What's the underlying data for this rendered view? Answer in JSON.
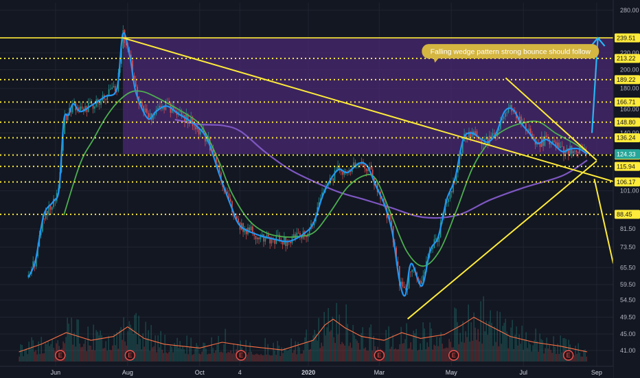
{
  "chart_data": {
    "type": "candlestick",
    "y_scale": "log",
    "ylim": [
      37.5,
      292
    ],
    "xlim": [
      "2019-04-15",
      "2020-09-15"
    ],
    "y_ticks": [
      280.0,
      220.0,
      200.0,
      180.0,
      160.0,
      140.0,
      124.33,
      101.0,
      81.5,
      73.5,
      65.5,
      59.5,
      54.5,
      49.5,
      45.0,
      41.0
    ],
    "x_ticks": [
      {
        "date": "2019-06-01",
        "label": "Jun",
        "bold": false
      },
      {
        "date": "2019-08-01",
        "label": "Aug",
        "bold": false
      },
      {
        "date": "2019-10-01",
        "label": "Oct",
        "bold": false
      },
      {
        "date": "2019-11-04",
        "label": "4",
        "bold": false
      },
      {
        "date": "2020-01-01",
        "label": "2020",
        "bold": true
      },
      {
        "date": "2020-03-01",
        "label": "Mar",
        "bold": false
      },
      {
        "date": "2020-05-01",
        "label": "May",
        "bold": false
      },
      {
        "date": "2020-07-01",
        "label": "Jul",
        "bold": false
      },
      {
        "date": "2020-09-01",
        "label": "Sep",
        "bold": false
      }
    ],
    "horizontal_levels": [
      {
        "value": 239.51,
        "label": "239.51",
        "style": "solid"
      },
      {
        "value": 213.22,
        "label": "213.22",
        "style": "dotted"
      },
      {
        "value": 189.22,
        "label": "189.22",
        "style": "dotted"
      },
      {
        "value": 166.71,
        "label": "166.71",
        "style": "dotted"
      },
      {
        "value": 148.8,
        "label": "148.80",
        "style": "dotted"
      },
      {
        "value": 136.24,
        "label": "136.24",
        "style": "dotted"
      },
      {
        "value": 123.57,
        "label": "123.57",
        "style": "dotted"
      },
      {
        "value": 115.94,
        "label": "115.94",
        "style": "dotted"
      },
      {
        "value": 106.17,
        "label": "106.17",
        "style": "dotted"
      },
      {
        "value": 88.45,
        "label": "88.45",
        "style": "dotted"
      }
    ],
    "last_price": {
      "value": 124.33,
      "label": "124.33",
      "color": "#26a69a"
    },
    "price_series": {
      "name": "",
      "color": "#2196f3",
      "points": [
        [
          "2019-05-09",
          62
        ],
        [
          "2019-05-15",
          68
        ],
        [
          "2019-05-22",
          88
        ],
        [
          "2019-05-30",
          95
        ],
        [
          "2019-06-04",
          102
        ],
        [
          "2019-06-08",
          150
        ],
        [
          "2019-06-12",
          155
        ],
        [
          "2019-06-16",
          165
        ],
        [
          "2019-06-22",
          158
        ],
        [
          "2019-07-02",
          164
        ],
        [
          "2019-07-13",
          172
        ],
        [
          "2019-07-23",
          180
        ],
        [
          "2019-07-28",
          245
        ],
        [
          "2019-08-03",
          215
        ],
        [
          "2019-08-08",
          176
        ],
        [
          "2019-08-18",
          152
        ],
        [
          "2019-08-25",
          158
        ],
        [
          "2019-09-03",
          163
        ],
        [
          "2019-09-13",
          156
        ],
        [
          "2019-09-28",
          146
        ],
        [
          "2019-10-08",
          134
        ],
        [
          "2019-10-18",
          110
        ],
        [
          "2019-10-28",
          92
        ],
        [
          "2019-11-04",
          83
        ],
        [
          "2019-11-18",
          79
        ],
        [
          "2019-12-02",
          77
        ],
        [
          "2019-12-16",
          76
        ],
        [
          "2019-12-30",
          80
        ],
        [
          "2020-01-06",
          85
        ],
        [
          "2020-01-13",
          98
        ],
        [
          "2020-01-20",
          108
        ],
        [
          "2020-01-27",
          114
        ],
        [
          "2020-02-03",
          112
        ],
        [
          "2020-02-13",
          118
        ],
        [
          "2020-02-20",
          116
        ],
        [
          "2020-02-27",
          104
        ],
        [
          "2020-03-05",
          94
        ],
        [
          "2020-03-12",
          80
        ],
        [
          "2020-03-18",
          61
        ],
        [
          "2020-03-23",
          56
        ],
        [
          "2020-03-28",
          67
        ],
        [
          "2020-04-06",
          59
        ],
        [
          "2020-04-13",
          72
        ],
        [
          "2020-04-20",
          78
        ],
        [
          "2020-04-27",
          96
        ],
        [
          "2020-05-04",
          108
        ],
        [
          "2020-05-11",
          135
        ],
        [
          "2020-05-18",
          140
        ],
        [
          "2020-05-25",
          136
        ],
        [
          "2020-06-01",
          133
        ],
        [
          "2020-06-08",
          140
        ],
        [
          "2020-06-15",
          158
        ],
        [
          "2020-06-22",
          160
        ],
        [
          "2020-06-29",
          148
        ],
        [
          "2020-07-06",
          140
        ],
        [
          "2020-07-13",
          132
        ],
        [
          "2020-07-20",
          135
        ],
        [
          "2020-07-27",
          131
        ],
        [
          "2020-08-03",
          126
        ],
        [
          "2020-08-10",
          128
        ],
        [
          "2020-08-17",
          128
        ],
        [
          "2020-08-24",
          124.33
        ]
      ]
    },
    "ma_fast": {
      "name": "",
      "color": "#4caf50",
      "points": [
        [
          "2019-06-08",
          88
        ],
        [
          "2019-06-22",
          118
        ],
        [
          "2019-07-03",
          135
        ],
        [
          "2019-07-13",
          152
        ],
        [
          "2019-07-23",
          166
        ],
        [
          "2019-08-03",
          176
        ],
        [
          "2019-08-13",
          177
        ],
        [
          "2019-08-24",
          172
        ],
        [
          "2019-09-13",
          160
        ],
        [
          "2019-09-28",
          150
        ],
        [
          "2019-10-06",
          140
        ],
        [
          "2019-10-18",
          118
        ],
        [
          "2019-10-28",
          100
        ],
        [
          "2019-11-11",
          86
        ],
        [
          "2019-11-25",
          80
        ],
        [
          "2019-12-09",
          78
        ],
        [
          "2019-12-23",
          78
        ],
        [
          "2020-01-06",
          80
        ],
        [
          "2020-01-20",
          90
        ],
        [
          "2020-02-03",
          103
        ],
        [
          "2020-02-17",
          110
        ],
        [
          "2020-02-27",
          108
        ],
        [
          "2020-03-10",
          90
        ],
        [
          "2020-03-24",
          72
        ],
        [
          "2020-04-07",
          66
        ],
        [
          "2020-04-21",
          72
        ],
        [
          "2020-05-05",
          90
        ],
        [
          "2020-05-19",
          115
        ],
        [
          "2020-06-02",
          133
        ],
        [
          "2020-06-16",
          143
        ],
        [
          "2020-06-30",
          148
        ],
        [
          "2020-07-14",
          149
        ],
        [
          "2020-07-28",
          140
        ],
        [
          "2020-08-11",
          133
        ],
        [
          "2020-08-24",
          126
        ]
      ]
    },
    "ma_slow": {
      "name": "",
      "color": "#7e57c2",
      "points": [
        [
          "2019-09-10",
          151
        ],
        [
          "2019-10-01",
          147
        ],
        [
          "2019-10-21",
          146
        ],
        [
          "2019-11-05",
          141
        ],
        [
          "2019-11-25",
          126
        ],
        [
          "2019-12-16",
          114
        ],
        [
          "2020-01-07",
          106
        ],
        [
          "2020-01-28",
          100
        ],
        [
          "2020-02-18",
          96
        ],
        [
          "2020-03-10",
          92
        ],
        [
          "2020-04-07",
          87
        ],
        [
          "2020-05-06",
          88
        ],
        [
          "2020-06-03",
          96
        ],
        [
          "2020-07-02",
          103
        ],
        [
          "2020-08-03",
          110
        ],
        [
          "2020-08-24",
          120
        ]
      ]
    },
    "wedge_lines": [
      {
        "from": [
          "2019-07-28",
          239.51
        ],
        "to": [
          "2020-09-15",
          106.5
        ],
        "color": "#ffeb3b"
      },
      {
        "from": [
          "2020-06-16",
          191
        ],
        "to": [
          "2020-09-01",
          120
        ],
        "color": "#ffeb3b"
      },
      {
        "from": [
          "2020-03-25",
          49
        ],
        "to": [
          "2020-09-01",
          119.5
        ],
        "color": "#ffeb3b"
      },
      {
        "from": [
          "2020-08-30",
          108
        ],
        "to": [
          "2020-09-15",
          67
        ],
        "color": "#ffeb3b"
      }
    ],
    "target_zone": {
      "from": "2019-07-28",
      "to": "2020-09-15",
      "low": 124.33,
      "high": 239.51,
      "color": "#4a2a72"
    },
    "projection_arrow": {
      "from": [
        "2020-08-28",
        140
      ],
      "to": [
        "2020-09-02",
        239.51
      ],
      "color": "#29b6f6"
    },
    "annotation": {
      "text": "Falling wedge pattern  strong bounce should follow",
      "date": "2020-06-20",
      "value": 222,
      "color": "#d4b640"
    },
    "earnings": [
      {
        "date": "2019-06-05",
        "label": "E"
      },
      {
        "date": "2019-08-03",
        "label": "E"
      },
      {
        "date": "2019-11-05",
        "label": "E"
      },
      {
        "date": "2020-03-01",
        "label": "E"
      },
      {
        "date": "2020-05-03",
        "label": "E"
      },
      {
        "date": "2020-08-08",
        "label": "E"
      }
    ],
    "volume": {
      "color": "#ff7043",
      "points": [
        [
          "2019-05-01",
          10
        ],
        [
          "2019-05-20",
          18
        ],
        [
          "2019-06-10",
          30
        ],
        [
          "2019-07-01",
          22
        ],
        [
          "2019-07-20",
          26
        ],
        [
          "2019-08-01",
          36
        ],
        [
          "2019-08-15",
          24
        ],
        [
          "2019-09-01",
          18
        ],
        [
          "2019-10-01",
          14
        ],
        [
          "2019-10-20",
          20
        ],
        [
          "2019-11-10",
          16
        ],
        [
          "2019-12-10",
          12
        ],
        [
          "2020-01-05",
          22
        ],
        [
          "2020-01-15",
          38
        ],
        [
          "2020-01-22",
          44
        ],
        [
          "2020-02-01",
          35
        ],
        [
          "2020-02-15",
          26
        ],
        [
          "2020-03-05",
          22
        ],
        [
          "2020-03-20",
          30
        ],
        [
          "2020-04-05",
          24
        ],
        [
          "2020-04-25",
          28
        ],
        [
          "2020-05-10",
          38
        ],
        [
          "2020-05-20",
          46
        ],
        [
          "2020-06-01",
          38
        ],
        [
          "2020-06-20",
          26
        ],
        [
          "2020-07-10",
          20
        ],
        [
          "2020-08-01",
          16
        ],
        [
          "2020-08-24",
          10
        ]
      ]
    }
  }
}
